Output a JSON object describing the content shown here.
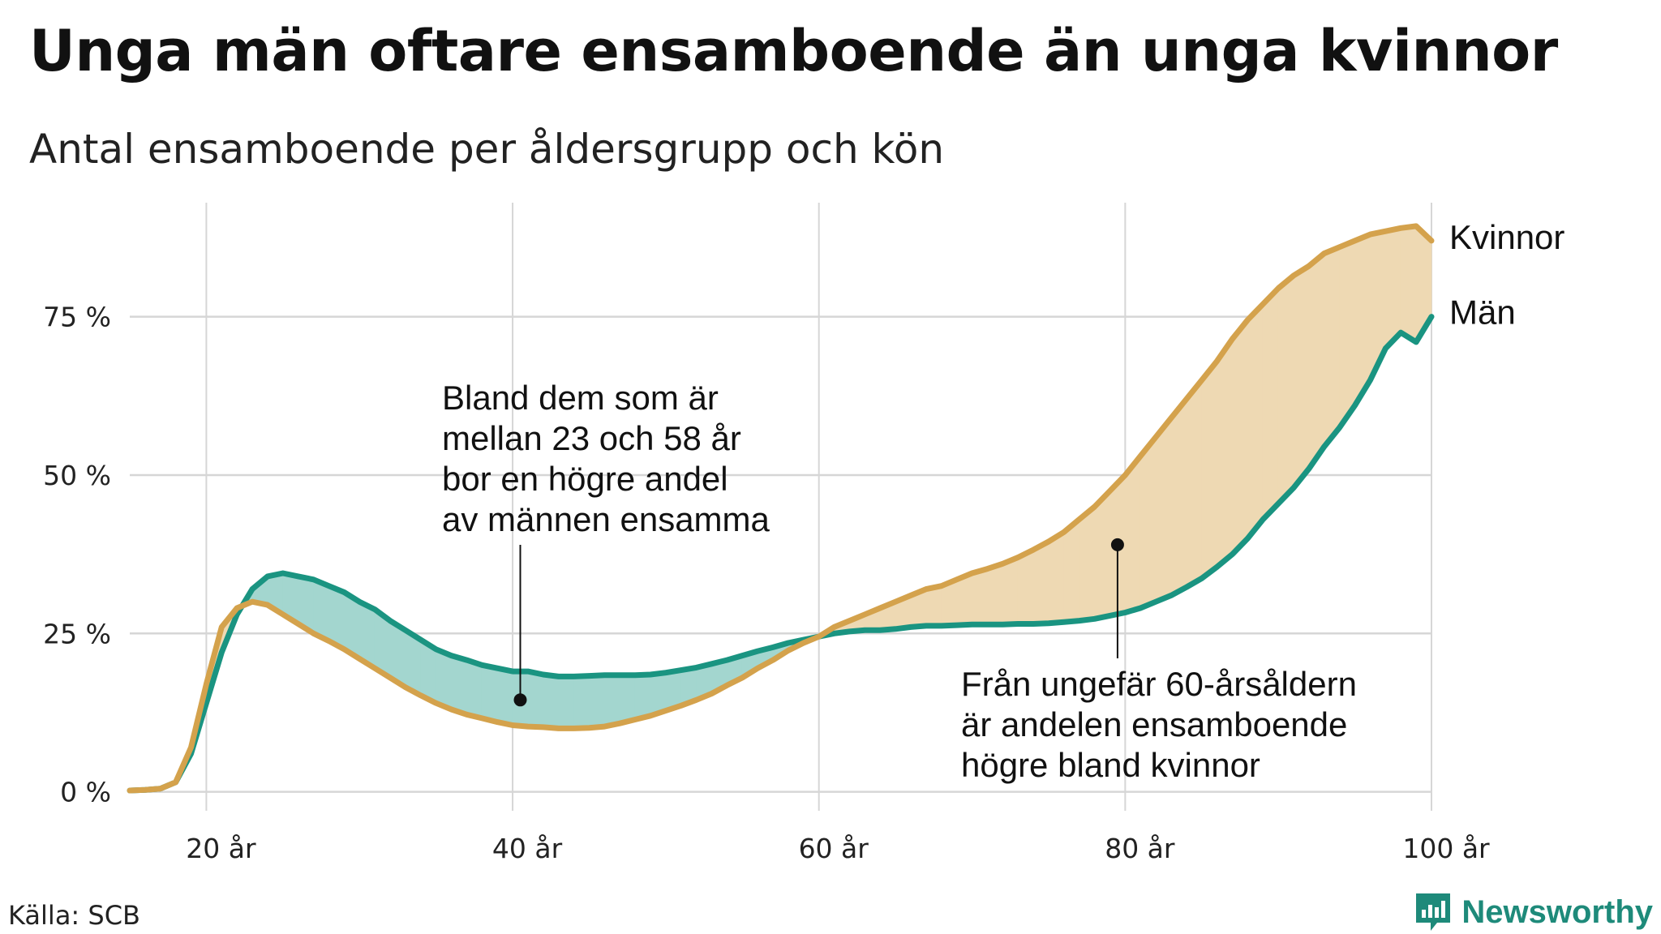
{
  "header": {
    "title": "Unga män oftare ensamboende än unga kvinnor",
    "subtitle": "Antal ensamboende per åldersgrupp och kön"
  },
  "footer": {
    "source": "Källa: SCB",
    "brand": "Newsworthy"
  },
  "colors": {
    "women": "#d4a24c",
    "men": "#1a9481",
    "women_fill": "#eed9b3",
    "men_fill": "#a3d6cf",
    "grid": "#d6d6d6"
  },
  "chart_data": {
    "type": "area",
    "xlim": [
      15,
      100
    ],
    "ylim": [
      -3,
      93
    ],
    "x_ticks": [
      {
        "value": 20,
        "label": "20 år"
      },
      {
        "value": 40,
        "label": "40 år"
      },
      {
        "value": 60,
        "label": "60 år"
      },
      {
        "value": 80,
        "label": "80 år"
      },
      {
        "value": 100,
        "label": "100 år"
      }
    ],
    "y_ticks": [
      {
        "value": 0,
        "label": "0 %"
      },
      {
        "value": 25,
        "label": "25 %"
      },
      {
        "value": 50,
        "label": "50 %"
      },
      {
        "value": 75,
        "label": "75 %"
      }
    ],
    "grid": true,
    "x": [
      15,
      16,
      17,
      18,
      19,
      20,
      21,
      22,
      23,
      24,
      25,
      26,
      27,
      28,
      29,
      30,
      31,
      32,
      33,
      34,
      35,
      36,
      37,
      38,
      39,
      40,
      41,
      42,
      43,
      44,
      45,
      46,
      47,
      48,
      49,
      50,
      51,
      52,
      53,
      54,
      55,
      56,
      57,
      58,
      59,
      60,
      61,
      62,
      63,
      64,
      65,
      66,
      67,
      68,
      69,
      70,
      71,
      72,
      73,
      74,
      75,
      76,
      77,
      78,
      79,
      80,
      81,
      82,
      83,
      84,
      85,
      86,
      87,
      88,
      89,
      90,
      91,
      92,
      93,
      94,
      95,
      96,
      97,
      98,
      99,
      100
    ],
    "series": [
      {
        "name": "Kvinnor",
        "values": [
          0.2,
          0.3,
          0.5,
          1.5,
          7,
          17,
          26,
          29,
          30,
          29.5,
          28,
          26.5,
          25,
          23.8,
          22.5,
          21,
          19.5,
          18,
          16.5,
          15.2,
          14,
          13,
          12.2,
          11.6,
          11,
          10.5,
          10.3,
          10.2,
          10,
          10,
          10.1,
          10.3,
          10.8,
          11.4,
          12,
          12.8,
          13.6,
          14.5,
          15.5,
          16.8,
          18,
          19.5,
          20.8,
          22.3,
          23.5,
          24.5,
          26,
          27,
          28,
          29,
          30,
          31,
          32,
          32.5,
          33.5,
          34.5,
          35.2,
          36,
          37,
          38.2,
          39.5,
          41,
          43,
          45,
          47.5,
          50,
          53,
          56,
          59,
          62,
          65,
          68,
          71.5,
          74.5,
          77,
          79.5,
          81.5,
          83,
          85,
          86,
          87,
          88,
          88.5,
          89,
          89.3,
          87
        ]
      },
      {
        "name": "Män",
        "values": [
          0.2,
          0.3,
          0.5,
          1.5,
          6,
          14,
          22,
          28,
          32,
          34,
          34.5,
          34,
          33.5,
          32.5,
          31.5,
          30,
          28.8,
          27,
          25.5,
          24,
          22.5,
          21.5,
          20.8,
          20,
          19.5,
          19,
          19,
          18.5,
          18.2,
          18.2,
          18.3,
          18.4,
          18.4,
          18.4,
          18.5,
          18.8,
          19.2,
          19.6,
          20.2,
          20.8,
          21.5,
          22.2,
          22.8,
          23.5,
          24,
          24.5,
          25,
          25.3,
          25.5,
          25.5,
          25.7,
          26,
          26.2,
          26.2,
          26.3,
          26.4,
          26.4,
          26.4,
          26.5,
          26.5,
          26.6,
          26.8,
          27,
          27.3,
          27.8,
          28.3,
          29,
          30,
          31,
          32.3,
          33.7,
          35.5,
          37.5,
          40,
          43,
          45.5,
          48,
          51,
          54.5,
          57.5,
          61,
          65,
          70,
          72.5,
          71,
          75
        ]
      }
    ],
    "annotations": [
      {
        "lines": [
          "Bland dem som är",
          "mellan 23 och 58 år",
          "bor en högre andel",
          "av männen ensamma"
        ],
        "point": {
          "x": 40.5,
          "y": 14.5
        }
      },
      {
        "lines": [
          "Från ungefär 60-årsåldern",
          "är andelen ensamboende",
          "högre bland kvinnor"
        ],
        "point": {
          "x": 79.5,
          "y": 39
        }
      }
    ]
  }
}
